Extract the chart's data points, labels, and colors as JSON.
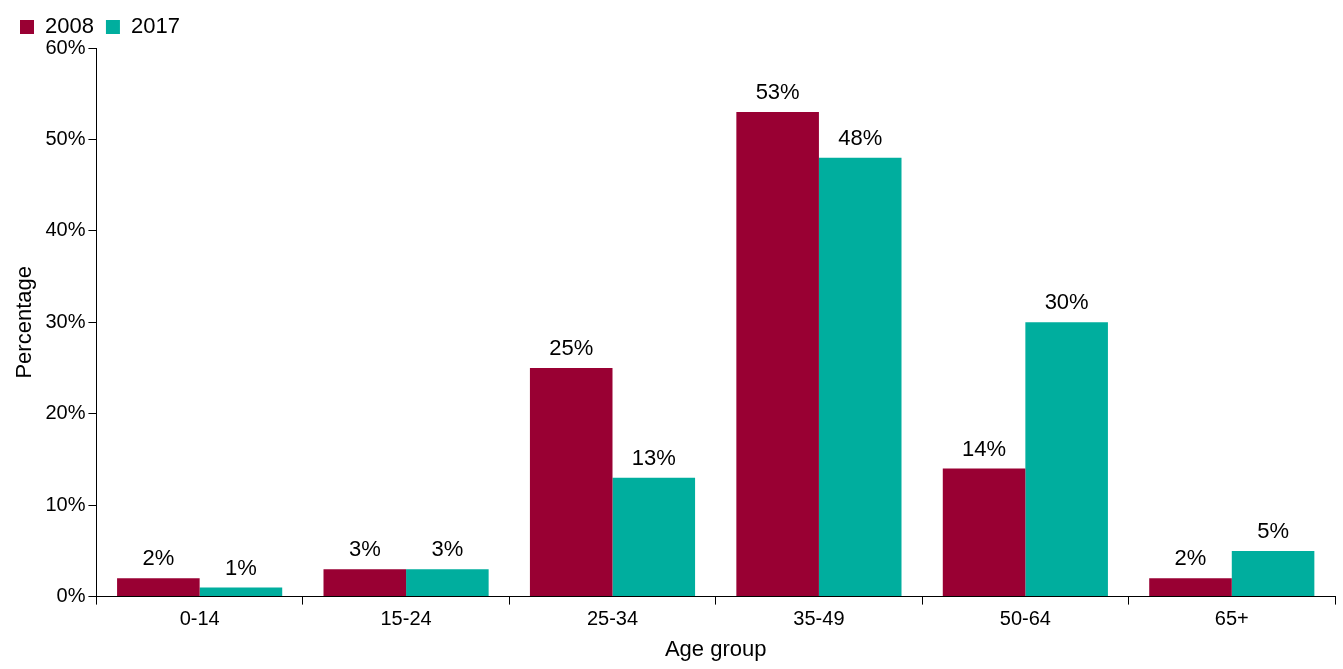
{
  "chart_data": {
    "type": "bar",
    "xlabel": "Age group",
    "ylabel": "Percentage",
    "categories": [
      "0-14",
      "15-24",
      "25-34",
      "35-49",
      "50-64",
      "65+"
    ],
    "series": [
      {
        "name": "2008",
        "color": "#990033",
        "values": [
          2,
          3,
          25,
          53,
          14,
          2
        ],
        "value_labels": [
          "2%",
          "3%",
          "25%",
          "53%",
          "14%",
          "2%"
        ]
      },
      {
        "name": "2017",
        "color": "#00ae9e",
        "values": [
          1,
          3,
          13,
          48,
          30,
          5
        ],
        "value_labels": [
          "1%",
          "3%",
          "13%",
          "48%",
          "30%",
          "5%"
        ]
      }
    ],
    "ylim": [
      0,
      60
    ],
    "yticks": [
      {
        "value": 0,
        "label": "0%"
      },
      {
        "value": 10,
        "label": "10%"
      },
      {
        "value": 20,
        "label": "20%"
      },
      {
        "value": 30,
        "label": "30%"
      },
      {
        "value": 40,
        "label": "40%"
      },
      {
        "value": 50,
        "label": "50%"
      },
      {
        "value": 60,
        "label": "60%"
      }
    ],
    "grid": false,
    "legend": "top left"
  }
}
